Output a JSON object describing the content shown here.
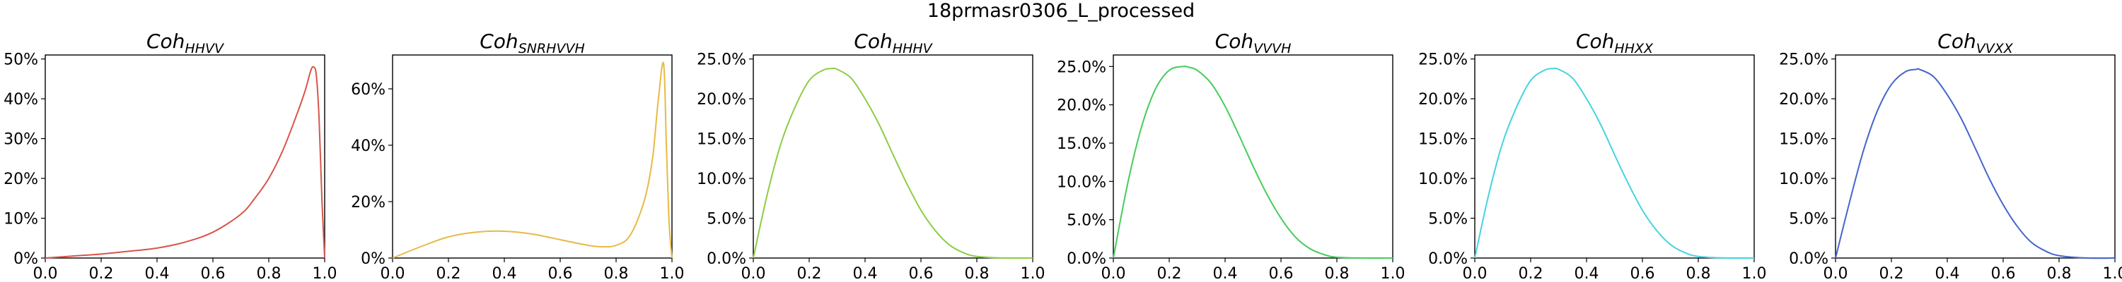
{
  "figure": {
    "title": "18prmasr0306_L_processed"
  },
  "chart_data": [
    {
      "type": "line",
      "title_base": "Coh",
      "title_sub": "HHVV",
      "color": "#d9544a",
      "xlim": [
        0.0,
        1.0
      ],
      "ylim": [
        0,
        0.51
      ],
      "x_ticks": [
        "0.0",
        "0.2",
        "0.4",
        "0.6",
        "0.8",
        "1.0"
      ],
      "y_ticks": [
        {
          "value": 0,
          "label": "0%"
        },
        {
          "value": 0.1,
          "label": "10%"
        },
        {
          "value": 0.2,
          "label": "20%"
        },
        {
          "value": 0.3,
          "label": "30%"
        },
        {
          "value": 0.4,
          "label": "40%"
        },
        {
          "value": 0.5,
          "label": "50%"
        }
      ],
      "x": [
        0,
        0.1,
        0.2,
        0.3,
        0.4,
        0.5,
        0.6,
        0.7,
        0.75,
        0.8,
        0.85,
        0.9,
        0.93,
        0.95,
        0.96,
        0.97,
        0.98,
        0.99,
        1.0
      ],
      "y": [
        0,
        0.005,
        0.01,
        0.017,
        0.025,
        0.04,
        0.065,
        0.11,
        0.15,
        0.2,
        0.27,
        0.36,
        0.42,
        0.47,
        0.48,
        0.46,
        0.35,
        0.15,
        0
      ]
    },
    {
      "type": "line",
      "title_base": "Coh",
      "title_sub": "SNRHVVH",
      "color": "#e8b945",
      "xlim": [
        0.0,
        1.0
      ],
      "ylim": [
        0,
        0.72
      ],
      "x_ticks": [
        "0.0",
        "0.2",
        "0.4",
        "0.6",
        "0.8",
        "1.0"
      ],
      "y_ticks": [
        {
          "value": 0,
          "label": "0%"
        },
        {
          "value": 0.2,
          "label": "20%"
        },
        {
          "value": 0.4,
          "label": "40%"
        },
        {
          "value": 0.6,
          "label": "60%"
        }
      ],
      "x": [
        0,
        0.1,
        0.2,
        0.3,
        0.4,
        0.5,
        0.6,
        0.7,
        0.75,
        0.8,
        0.85,
        0.9,
        0.93,
        0.95,
        0.97,
        0.98,
        0.99,
        1.0
      ],
      "y": [
        0,
        0.04,
        0.075,
        0.092,
        0.095,
        0.085,
        0.065,
        0.045,
        0.04,
        0.045,
        0.08,
        0.2,
        0.35,
        0.55,
        0.69,
        0.4,
        0.12,
        0
      ]
    },
    {
      "type": "line",
      "title_base": "Coh",
      "title_sub": "HHHV",
      "color": "#8ccd45",
      "xlim": [
        0.0,
        1.0
      ],
      "ylim": [
        0,
        0.255
      ],
      "x_ticks": [
        "0.0",
        "0.2",
        "0.4",
        "0.6",
        "0.8",
        "1.0"
      ],
      "y_ticks": [
        {
          "value": 0,
          "label": "0.0%"
        },
        {
          "value": 0.05,
          "label": "5.0%"
        },
        {
          "value": 0.1,
          "label": "10.0%"
        },
        {
          "value": 0.15,
          "label": "15.0%"
        },
        {
          "value": 0.2,
          "label": "20.0%"
        },
        {
          "value": 0.25,
          "label": "25.0%"
        }
      ],
      "x": [
        0,
        0.05,
        0.1,
        0.15,
        0.2,
        0.25,
        0.28,
        0.3,
        0.35,
        0.4,
        0.45,
        0.5,
        0.55,
        0.6,
        0.65,
        0.7,
        0.75,
        0.8,
        0.9,
        1.0
      ],
      "y": [
        0,
        0.08,
        0.145,
        0.19,
        0.223,
        0.236,
        0.238,
        0.237,
        0.226,
        0.2,
        0.168,
        0.13,
        0.093,
        0.06,
        0.035,
        0.017,
        0.007,
        0.002,
        0,
        0
      ]
    },
    {
      "type": "line",
      "title_base": "Coh",
      "title_sub": "VVVH",
      "color": "#45cc5b",
      "xlim": [
        0.0,
        1.0
      ],
      "ylim": [
        0,
        0.265
      ],
      "x_ticks": [
        "0.0",
        "0.2",
        "0.4",
        "0.6",
        "0.8",
        "1.0"
      ],
      "y_ticks": [
        {
          "value": 0,
          "label": "0.0%"
        },
        {
          "value": 0.05,
          "label": "5.0%"
        },
        {
          "value": 0.1,
          "label": "10.0%"
        },
        {
          "value": 0.15,
          "label": "15.0%"
        },
        {
          "value": 0.2,
          "label": "20.0%"
        },
        {
          "value": 0.25,
          "label": "25.0%"
        }
      ],
      "x": [
        0,
        0.05,
        0.1,
        0.15,
        0.2,
        0.25,
        0.27,
        0.3,
        0.35,
        0.4,
        0.45,
        0.5,
        0.55,
        0.6,
        0.65,
        0.7,
        0.75,
        0.8,
        0.9,
        1.0
      ],
      "y": [
        0,
        0.095,
        0.17,
        0.22,
        0.245,
        0.25,
        0.249,
        0.245,
        0.228,
        0.198,
        0.16,
        0.12,
        0.083,
        0.052,
        0.028,
        0.013,
        0.005,
        0.001,
        0,
        0
      ]
    },
    {
      "type": "line",
      "title_base": "Coh",
      "title_sub": "HHXX",
      "color": "#45d4e0",
      "xlim": [
        0.0,
        1.0
      ],
      "ylim": [
        0,
        0.255
      ],
      "x_ticks": [
        "0.0",
        "0.2",
        "0.4",
        "0.6",
        "0.8",
        "1.0"
      ],
      "y_ticks": [
        {
          "value": 0,
          "label": "0.0%"
        },
        {
          "value": 0.05,
          "label": "5.0%"
        },
        {
          "value": 0.1,
          "label": "10.0%"
        },
        {
          "value": 0.15,
          "label": "15.0%"
        },
        {
          "value": 0.2,
          "label": "20.0%"
        },
        {
          "value": 0.25,
          "label": "25.0%"
        }
      ],
      "x": [
        0,
        0.05,
        0.1,
        0.15,
        0.2,
        0.25,
        0.28,
        0.3,
        0.35,
        0.4,
        0.45,
        0.5,
        0.55,
        0.6,
        0.65,
        0.7,
        0.75,
        0.8,
        0.9,
        1.0
      ],
      "y": [
        0,
        0.08,
        0.145,
        0.19,
        0.223,
        0.236,
        0.238,
        0.237,
        0.226,
        0.2,
        0.168,
        0.13,
        0.093,
        0.06,
        0.035,
        0.017,
        0.007,
        0.002,
        0,
        0
      ]
    },
    {
      "type": "line",
      "title_base": "Coh",
      "title_sub": "VVXX",
      "color": "#4565cc",
      "xlim": [
        0.0,
        1.0
      ],
      "ylim": [
        0,
        0.255
      ],
      "x_ticks": [
        "0.0",
        "0.2",
        "0.4",
        "0.6",
        "0.8",
        "1.0"
      ],
      "y_ticks": [
        {
          "value": 0,
          "label": "0.0%"
        },
        {
          "value": 0.05,
          "label": "5.0%"
        },
        {
          "value": 0.1,
          "label": "10.0%"
        },
        {
          "value": 0.15,
          "label": "15.0%"
        },
        {
          "value": 0.2,
          "label": "20.0%"
        },
        {
          "value": 0.25,
          "label": "25.0%"
        }
      ],
      "x": [
        0,
        0.05,
        0.1,
        0.15,
        0.2,
        0.25,
        0.29,
        0.3,
        0.35,
        0.4,
        0.45,
        0.5,
        0.55,
        0.6,
        0.65,
        0.7,
        0.75,
        0.8,
        0.9,
        1.0
      ],
      "y": [
        0,
        0.07,
        0.135,
        0.185,
        0.218,
        0.234,
        0.237,
        0.237,
        0.228,
        0.205,
        0.175,
        0.138,
        0.1,
        0.067,
        0.04,
        0.02,
        0.009,
        0.003,
        0,
        0
      ]
    }
  ]
}
